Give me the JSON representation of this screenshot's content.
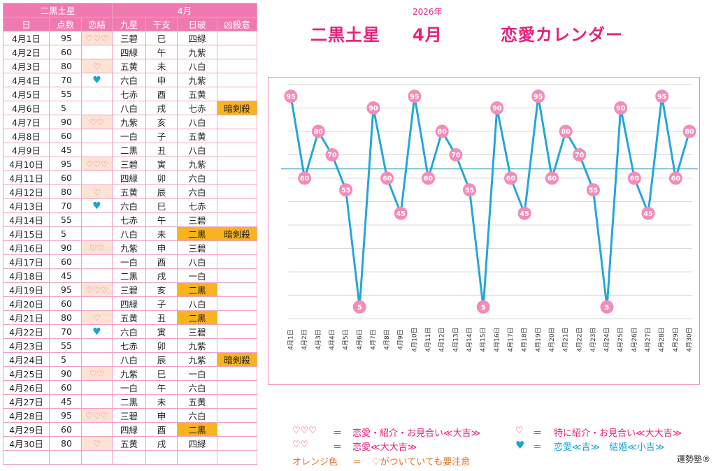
{
  "table": {
    "header_group_left": "二黒土星",
    "header_group_right": "4月",
    "columns": [
      "日",
      "点数",
      "恋結",
      "九星",
      "干支",
      "日破",
      "凶殺意"
    ],
    "rows": [
      {
        "date": "4月1日",
        "score": "95",
        "love": "♡♡♡",
        "kyusei": "三碧",
        "eto": "巳",
        "hiha": "四緑",
        "kyo": ""
      },
      {
        "date": "4月2日",
        "score": "60",
        "love": "",
        "kyusei": "四緑",
        "eto": "午",
        "hiha": "九紫",
        "kyo": ""
      },
      {
        "date": "4月3日",
        "score": "80",
        "love": "♡",
        "kyusei": "五黄",
        "eto": "未",
        "hiha": "八白",
        "kyo": ""
      },
      {
        "date": "4月4日",
        "score": "70",
        "love": "♥",
        "kyusei": "六白",
        "eto": "申",
        "hiha": "九紫",
        "kyo": ""
      },
      {
        "date": "4月5日",
        "score": "55",
        "love": "",
        "kyusei": "七赤",
        "eto": "酉",
        "hiha": "五黄",
        "kyo": ""
      },
      {
        "date": "4月6日",
        "score": "5",
        "love": "",
        "kyusei": "八白",
        "eto": "戌",
        "hiha": "七赤",
        "kyo": "暗剣殺"
      },
      {
        "date": "4月7日",
        "score": "90",
        "love": "♡♡",
        "kyusei": "九紫",
        "eto": "亥",
        "hiha": "八白",
        "kyo": ""
      },
      {
        "date": "4月8日",
        "score": "60",
        "love": "",
        "kyusei": "一白",
        "eto": "子",
        "hiha": "五黄",
        "kyo": ""
      },
      {
        "date": "4月9日",
        "score": "45",
        "love": "",
        "kyusei": "二黒",
        "eto": "丑",
        "hiha": "八白",
        "kyo": ""
      },
      {
        "date": "4月10日",
        "score": "95",
        "love": "♡♡♡",
        "kyusei": "三碧",
        "eto": "寅",
        "hiha": "九紫",
        "kyo": ""
      },
      {
        "date": "4月11日",
        "score": "60",
        "love": "",
        "kyusei": "四緑",
        "eto": "卯",
        "hiha": "六白",
        "kyo": ""
      },
      {
        "date": "4月12日",
        "score": "80",
        "love": "♡",
        "kyusei": "五黄",
        "eto": "辰",
        "hiha": "六白",
        "kyo": ""
      },
      {
        "date": "4月13日",
        "score": "70",
        "love": "♥",
        "kyusei": "六白",
        "eto": "巳",
        "hiha": "七赤",
        "kyo": ""
      },
      {
        "date": "4月14日",
        "score": "55",
        "love": "",
        "kyusei": "七赤",
        "eto": "午",
        "hiha": "三碧",
        "kyo": ""
      },
      {
        "date": "4月15日",
        "score": "5",
        "love": "",
        "kyusei": "八白",
        "eto": "未",
        "hiha": "二黒",
        "kyo": "暗剣殺"
      },
      {
        "date": "4月16日",
        "score": "90",
        "love": "♡♡",
        "kyusei": "九紫",
        "eto": "申",
        "hiha": "三碧",
        "kyo": ""
      },
      {
        "date": "4月17日",
        "score": "60",
        "love": "",
        "kyusei": "一白",
        "eto": "酉",
        "hiha": "八白",
        "kyo": ""
      },
      {
        "date": "4月18日",
        "score": "45",
        "love": "",
        "kyusei": "二黒",
        "eto": "戌",
        "hiha": "一白",
        "kyo": ""
      },
      {
        "date": "4月19日",
        "score": "95",
        "love": "♡♡♡",
        "kyusei": "三碧",
        "eto": "亥",
        "hiha": "二黒",
        "kyo": ""
      },
      {
        "date": "4月20日",
        "score": "60",
        "love": "",
        "kyusei": "四緑",
        "eto": "子",
        "hiha": "八白",
        "kyo": ""
      },
      {
        "date": "4月21日",
        "score": "80",
        "love": "♡",
        "kyusei": "五黄",
        "eto": "丑",
        "hiha": "二黒",
        "kyo": ""
      },
      {
        "date": "4月22日",
        "score": "70",
        "love": "♥",
        "kyusei": "六白",
        "eto": "寅",
        "hiha": "三碧",
        "kyo": ""
      },
      {
        "date": "4月23日",
        "score": "55",
        "love": "",
        "kyusei": "七赤",
        "eto": "卯",
        "hiha": "九紫",
        "kyo": ""
      },
      {
        "date": "4月24日",
        "score": "5",
        "love": "",
        "kyusei": "八白",
        "eto": "辰",
        "hiha": "九紫",
        "kyo": "暗剣殺"
      },
      {
        "date": "4月25日",
        "score": "90",
        "love": "♡♡",
        "kyusei": "九紫",
        "eto": "巳",
        "hiha": "一白",
        "kyo": ""
      },
      {
        "date": "4月26日",
        "score": "60",
        "love": "",
        "kyusei": "一白",
        "eto": "午",
        "hiha": "六白",
        "kyo": ""
      },
      {
        "date": "4月27日",
        "score": "45",
        "love": "",
        "kyusei": "二黒",
        "eto": "未",
        "hiha": "五黄",
        "kyo": ""
      },
      {
        "date": "4月28日",
        "score": "95",
        "love": "♡♡♡",
        "kyusei": "三碧",
        "eto": "申",
        "hiha": "六白",
        "kyo": ""
      },
      {
        "date": "4月29日",
        "score": "60",
        "love": "",
        "kyusei": "四緑",
        "eto": "酉",
        "hiha": "二黒",
        "kyo": ""
      },
      {
        "date": "4月30日",
        "score": "80",
        "love": "♡",
        "kyusei": "五黄",
        "eto": "戌",
        "hiha": "四緑",
        "kyo": ""
      },
      {
        "date": "",
        "score": "",
        "love": "",
        "kyusei": "",
        "eto": "",
        "hiha": "",
        "kyo": ""
      }
    ],
    "orange_hiha_dates": [
      "4月15日",
      "4月19日",
      "4月21日",
      "4月29日"
    ]
  },
  "title": {
    "year": "2026年",
    "star": "二黒土星",
    "month": "4月",
    "name": "恋愛カレンダー"
  },
  "chart_data": {
    "type": "line",
    "x": [
      "4月1日",
      "4月2日",
      "4月3日",
      "4月4日",
      "4月5日",
      "4月6日",
      "4月7日",
      "4月8日",
      "4月9日",
      "4月10日",
      "4月11日",
      "4月12日",
      "4月13日",
      "4月14日",
      "4月15日",
      "4月16日",
      "4月17日",
      "4月18日",
      "4月19日",
      "4月20日",
      "4月21日",
      "4月22日",
      "4月23日",
      "4月24日",
      "4月25日",
      "4月26日",
      "4月27日",
      "4月28日",
      "4月29日",
      "4月30日"
    ],
    "values": [
      95,
      60,
      80,
      70,
      55,
      5,
      90,
      60,
      45,
      95,
      60,
      80,
      70,
      55,
      5,
      90,
      60,
      45,
      95,
      60,
      80,
      70,
      55,
      5,
      90,
      60,
      45,
      95,
      60,
      80
    ],
    "ylim": [
      0,
      100
    ],
    "reference_line": 64,
    "grid": true,
    "line_color": "#25a6d9",
    "marker_color": "#f48bb8",
    "title": "",
    "xlabel": "",
    "ylabel": ""
  },
  "legend": {
    "l1_sym": "♡♡♡",
    "l1_eq": "＝",
    "l1_text": "恋愛・紹介・お見合い≪大吉≫",
    "l2_sym": "♡",
    "l2_eq": "＝",
    "l2_text": "特に紹介・お見合い≪大大吉≫",
    "l3_sym": "♡♡",
    "l3_eq": "＝",
    "l3_text": "恋愛≪大大吉≫",
    "l4_sym": "♥",
    "l4_eq": "＝",
    "l4_text": "恋愛≪吉≫　結婚≪小吉≫",
    "l5_sym": "オレンジ色",
    "l5_eq": "＝",
    "l5_text": "♡がついていても要注意",
    "logo": "運勢塾®"
  },
  "colors": {
    "pink": "#e8207a",
    "header_pink": "#f07ab0",
    "orange": "#f8b31d",
    "cyan": "#1aa3d6"
  }
}
